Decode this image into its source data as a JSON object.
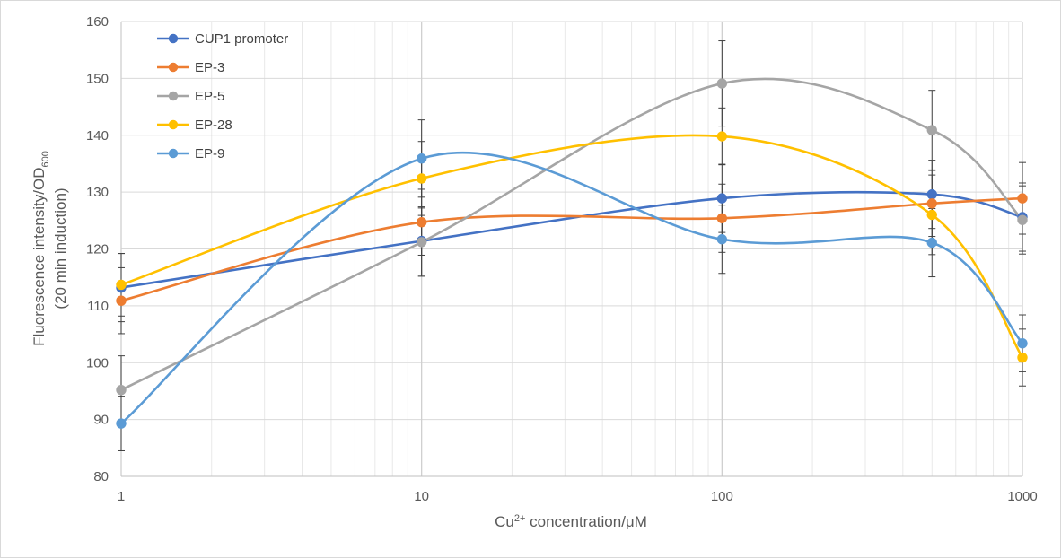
{
  "chart_data": {
    "type": "line",
    "title": "",
    "xlabel": "Cu²⁺ concentration/μM",
    "xlabel_base": "Cu",
    "xlabel_sup": "2+",
    "xlabel_rest": " concentration/μM",
    "ylabel_line1_base": "Fluorescence intensity/OD",
    "ylabel_line1_sub": "600",
    "ylabel_line2": "(20 min induction)",
    "x_scale": "log",
    "xlim": [
      1,
      1000
    ],
    "ylim": [
      80,
      160
    ],
    "x_ticks": [
      1,
      10,
      100,
      1000
    ],
    "x_tick_labels": [
      "1",
      "10",
      "100",
      "1000"
    ],
    "y_ticks": [
      80,
      90,
      100,
      110,
      120,
      130,
      140,
      150,
      160
    ],
    "y_tick_labels": [
      "80",
      "90",
      "100",
      "110",
      "120",
      "130",
      "140",
      "150",
      "160"
    ],
    "grid": true,
    "smooth": true,
    "error_bars": true,
    "legend_position": "top-left",
    "x": [
      1,
      10,
      100,
      500,
      1000
    ],
    "series": [
      {
        "name": "CUP1 promoter",
        "color": "#4472c4",
        "values": [
          113.2,
          121.4,
          128.9,
          129.6,
          125.6
        ],
        "errors": [
          6.0,
          6.0,
          6.0,
          6.0,
          6.0
        ]
      },
      {
        "name": "EP-3",
        "color": "#ed7d31",
        "values": [
          110.9,
          124.7,
          125.4,
          128.0,
          128.9
        ],
        "errors": [
          5.8,
          5.8,
          6.0,
          5.8,
          6.3
        ]
      },
      {
        "name": "EP-5",
        "color": "#a5a5a5",
        "values": [
          95.2,
          121.2,
          149.1,
          140.9,
          125.1
        ],
        "errors": [
          6.0,
          6.0,
          7.5,
          7.0,
          6.0
        ]
      },
      {
        "name": "EP-28",
        "color": "#ffc000",
        "values": [
          113.7,
          132.4,
          139.8,
          126.0,
          100.9
        ],
        "errors": [
          5.5,
          6.5,
          5.0,
          7.0,
          5.0
        ]
      },
      {
        "name": "EP-9",
        "color": "#5b9bd5",
        "values": [
          89.3,
          135.9,
          121.7,
          121.1,
          103.4
        ],
        "errors": [
          4.8,
          6.8,
          6.0,
          6.0,
          5.0
        ]
      }
    ]
  }
}
